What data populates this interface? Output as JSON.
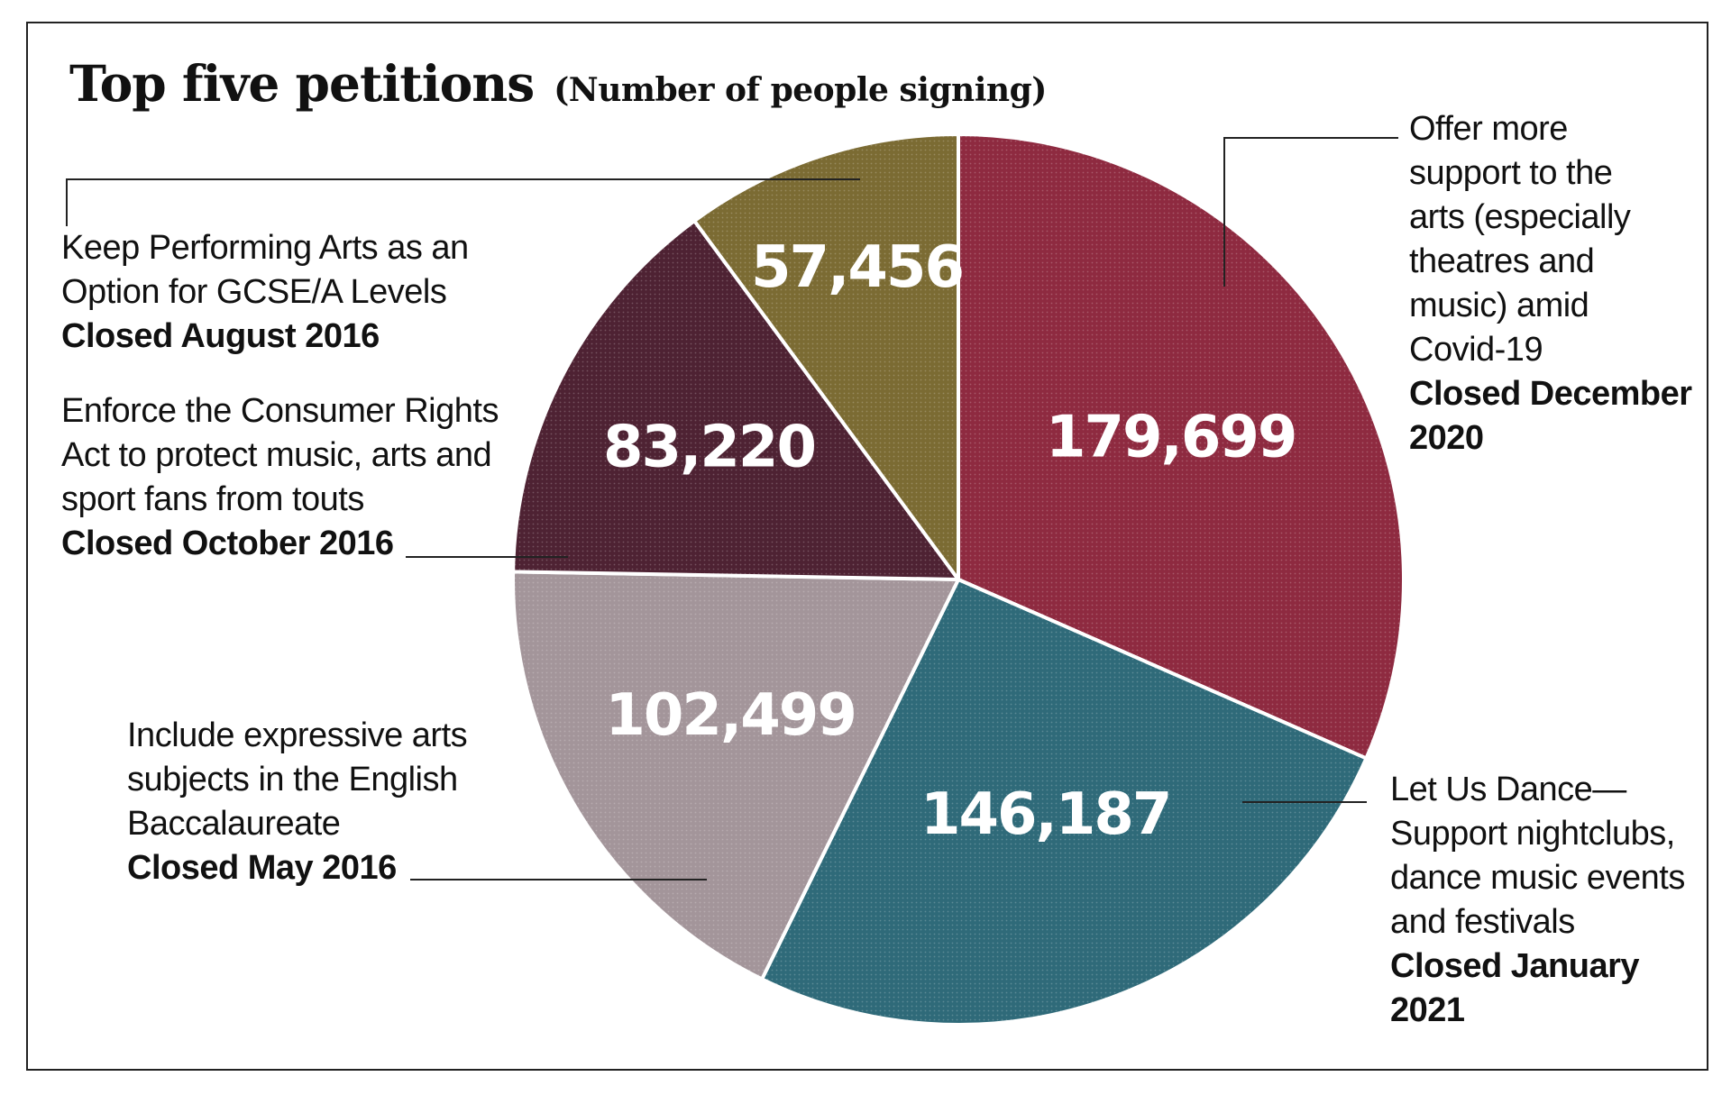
{
  "chart_data": {
    "type": "pie",
    "title": "Top five petitions",
    "subtitle": "(Number of people signing)",
    "slices": [
      {
        "value": 179699,
        "display": "179,699",
        "name_lines": [
          "Offer more",
          "support to the",
          "arts (especially",
          "theatres and",
          "music) amid",
          "Covid-19"
        ],
        "closed_lines": [
          "Closed December",
          "2020"
        ],
        "color": "#8e2a40"
      },
      {
        "value": 146187,
        "display": "146,187",
        "name_lines": [
          "Let Us Dance—",
          "Support nightclubs,",
          "dance music events",
          "and festivals"
        ],
        "closed_lines": [
          "Closed January",
          "2021"
        ],
        "color": "#2f6a79"
      },
      {
        "value": 102499,
        "display": "102,499",
        "name_lines": [
          "Include expressive arts",
          "subjects in the English",
          "Baccalaureate"
        ],
        "closed_lines": [
          "Closed May 2016"
        ],
        "color": "#a3959a"
      },
      {
        "value": 83220,
        "display": "83,220",
        "name_lines": [
          "Enforce the Consumer Rights",
          "Act to protect music, arts and",
          "sport fans from touts"
        ],
        "closed_lines": [
          "Closed October 2016"
        ],
        "color": "#4e2233"
      },
      {
        "value": 57456,
        "display": "57,456",
        "name_lines": [
          "Keep Performing Arts as an",
          "Option for GCSE/A Levels"
        ],
        "closed_lines": [
          "Closed August 2016"
        ],
        "color": "#7b6b33"
      }
    ]
  }
}
